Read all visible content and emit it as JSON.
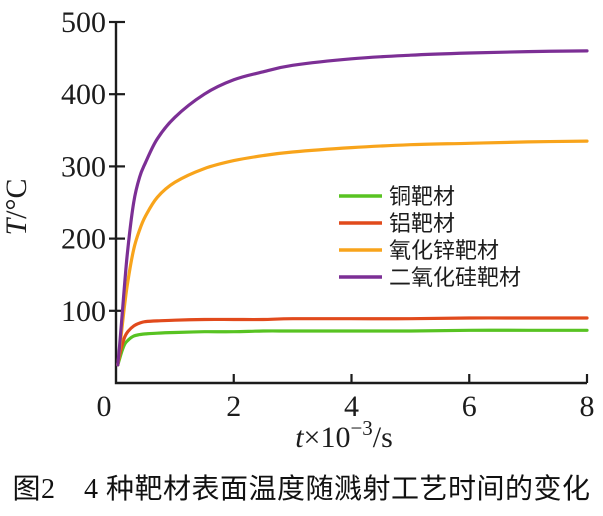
{
  "figure": {
    "caption": "图2　4 种靶材表面温度随溅射工艺时间的变化"
  },
  "chart_data": {
    "type": "line",
    "title": "",
    "xlabel": "t×10⁻³/s",
    "ylabel": "T/°C",
    "xlabel_parts": {
      "variable": "t",
      "prefix": "×10",
      "superscript": "−3",
      "suffix": "/s"
    },
    "ylabel_parts": {
      "variable": "T",
      "suffix": "/°C"
    },
    "xlim": [
      0,
      8
    ],
    "ylim": [
      0,
      500
    ],
    "xticks": [
      0,
      2,
      4,
      6,
      8
    ],
    "yticks": [
      100,
      200,
      300,
      400,
      500
    ],
    "grid": false,
    "legend_position": "center-right",
    "axis_color": "#1c1c1c",
    "background": "#ffffff",
    "series": [
      {
        "id": "copper-target",
        "name": "铜靶材",
        "color": "#58c322",
        "points": [
          [
            0.03,
            25
          ],
          [
            0.06,
            33
          ],
          [
            0.1,
            44
          ],
          [
            0.15,
            54
          ],
          [
            0.2,
            59
          ],
          [
            0.3,
            65
          ],
          [
            0.4,
            67
          ],
          [
            0.5,
            68
          ],
          [
            0.7,
            69
          ],
          [
            1.0,
            70
          ],
          [
            1.5,
            71
          ],
          [
            2.0,
            71
          ],
          [
            2.5,
            72
          ],
          [
            3.0,
            72
          ],
          [
            4.0,
            72
          ],
          [
            5.0,
            72
          ],
          [
            6.0,
            73
          ],
          [
            7.0,
            73
          ],
          [
            8.0,
            73
          ]
        ]
      },
      {
        "id": "aluminum-target",
        "name": "铝靶材",
        "color": "#e14a1c",
        "points": [
          [
            0.03,
            26
          ],
          [
            0.06,
            38
          ],
          [
            0.1,
            52
          ],
          [
            0.15,
            64
          ],
          [
            0.2,
            71
          ],
          [
            0.3,
            79
          ],
          [
            0.4,
            83
          ],
          [
            0.5,
            85
          ],
          [
            0.7,
            86
          ],
          [
            1.0,
            87
          ],
          [
            1.5,
            88
          ],
          [
            2.0,
            88
          ],
          [
            2.5,
            88
          ],
          [
            3.0,
            89
          ],
          [
            4.0,
            89
          ],
          [
            5.0,
            89
          ],
          [
            6.0,
            90
          ],
          [
            7.0,
            90
          ],
          [
            8.0,
            90
          ]
        ]
      },
      {
        "id": "zinc-oxide-target",
        "name": "氧化锌靶材",
        "color": "#f8a41b",
        "points": [
          [
            0.03,
            25
          ],
          [
            0.06,
            45
          ],
          [
            0.1,
            75
          ],
          [
            0.15,
            110
          ],
          [
            0.2,
            140
          ],
          [
            0.3,
            185
          ],
          [
            0.4,
            212
          ],
          [
            0.5,
            231
          ],
          [
            0.7,
            257
          ],
          [
            1.0,
            278
          ],
          [
            1.5,
            297
          ],
          [
            2.0,
            308
          ],
          [
            2.5,
            315
          ],
          [
            3.0,
            320
          ],
          [
            4.0,
            326
          ],
          [
            5.0,
            330
          ],
          [
            6.0,
            332
          ],
          [
            7.0,
            334
          ],
          [
            8.0,
            335
          ]
        ]
      },
      {
        "id": "silicon-dioxide-target",
        "name": "二氧化硅靶材",
        "color": "#7c2f95",
        "points": [
          [
            0.03,
            25
          ],
          [
            0.06,
            50
          ],
          [
            0.1,
            90
          ],
          [
            0.15,
            140
          ],
          [
            0.2,
            185
          ],
          [
            0.3,
            250
          ],
          [
            0.4,
            285
          ],
          [
            0.5,
            305
          ],
          [
            0.7,
            338
          ],
          [
            1.0,
            368
          ],
          [
            1.5,
            400
          ],
          [
            2.0,
            420
          ],
          [
            2.5,
            431
          ],
          [
            3.0,
            440
          ],
          [
            4.0,
            449
          ],
          [
            5.0,
            454
          ],
          [
            6.0,
            457
          ],
          [
            7.0,
            459
          ],
          [
            8.0,
            460
          ]
        ]
      }
    ]
  }
}
